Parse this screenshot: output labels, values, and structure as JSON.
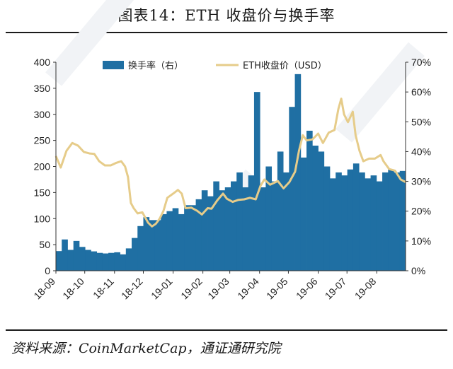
{
  "header": {
    "title": "图表14：ETH 收盘价与换手率"
  },
  "footer": {
    "source": "资料来源：CoinMarketCap，通证通研究院"
  },
  "colors": {
    "turnover_bar": "#1f6fa3",
    "price_line": "#e6cc8a",
    "rule": "#1b1b1b"
  },
  "chart_data": {
    "type": "bar+line",
    "title": "图表14：ETH 收盘价与换手率",
    "x_tick_labels": [
      "18-09",
      "18-10",
      "18-11",
      "18-12",
      "19-01",
      "19-02",
      "19-03",
      "19-04",
      "19-05",
      "19-06",
      "19-07",
      "19-08"
    ],
    "x_range": [
      "2018-09-01",
      "2019-08-31"
    ],
    "left_axis": {
      "ticks": [
        0,
        50,
        100,
        150,
        200,
        250,
        300,
        350,
        400
      ],
      "ylim": [
        0,
        400
      ]
    },
    "right_axis": {
      "ticks": [
        "0%",
        "10%",
        "20%",
        "30%",
        "40%",
        "50%",
        "60%",
        "70%"
      ],
      "ylim": [
        0,
        0.7
      ]
    },
    "legend_position": "top",
    "series": [
      {
        "name": "换手率（右）",
        "type": "bar",
        "axis": "right",
        "date_start": "2018-09-01",
        "date_end": "2019-08-31",
        "step": "7 days",
        "values": [
          0.066,
          0.105,
          0.07,
          0.1,
          0.08,
          0.07,
          0.065,
          0.06,
          0.058,
          0.06,
          0.062,
          0.055,
          0.075,
          0.11,
          0.15,
          0.18,
          0.17,
          0.17,
          0.19,
          0.2,
          0.21,
          0.19,
          0.22,
          0.22,
          0.24,
          0.27,
          0.25,
          0.3,
          0.27,
          0.28,
          0.3,
          0.33,
          0.28,
          0.32,
          0.6,
          0.28,
          0.35,
          0.3,
          0.4,
          0.33,
          0.55,
          0.66,
          0.38,
          0.47,
          0.42,
          0.4,
          0.35,
          0.31,
          0.33,
          0.32,
          0.34,
          0.36,
          0.33,
          0.31,
          0.32,
          0.3,
          0.33,
          0.34,
          0.33,
          0.335
        ]
      },
      {
        "name": "ETH收盘价（USD）",
        "type": "line",
        "axis": "left",
        "x": [
          "2018-09-01",
          "2018-09-06",
          "2018-09-12",
          "2018-09-18",
          "2018-09-24",
          "2018-09-30",
          "2018-10-06",
          "2018-10-11",
          "2018-10-16",
          "2018-10-22",
          "2018-10-28",
          "2018-11-03",
          "2018-11-08",
          "2018-11-12",
          "2018-11-15",
          "2018-11-18",
          "2018-11-21",
          "2018-11-25",
          "2018-11-30",
          "2018-12-06",
          "2018-12-10",
          "2018-12-14",
          "2018-12-18",
          "2018-12-22",
          "2018-12-26",
          "2019-01-01",
          "2019-01-06",
          "2019-01-10",
          "2019-01-14",
          "2019-01-20",
          "2019-01-26",
          "2019-01-31",
          "2019-02-06",
          "2019-02-10",
          "2019-02-16",
          "2019-02-22",
          "2019-02-26",
          "2019-03-04",
          "2019-03-10",
          "2019-03-16",
          "2019-03-22",
          "2019-03-28",
          "2019-04-02",
          "2019-04-06",
          "2019-04-12",
          "2019-04-20",
          "2019-04-26",
          "2019-05-02",
          "2019-05-08",
          "2019-05-12",
          "2019-05-14",
          "2019-05-16",
          "2019-05-20",
          "2019-05-26",
          "2019-06-01",
          "2019-06-06",
          "2019-06-12",
          "2019-06-18",
          "2019-06-22",
          "2019-06-25",
          "2019-06-28",
          "2019-07-02",
          "2019-07-07",
          "2019-07-10",
          "2019-07-14",
          "2019-07-18",
          "2019-07-24",
          "2019-07-30",
          "2019-08-05",
          "2019-08-08",
          "2019-08-14",
          "2019-08-20",
          "2019-08-26",
          "2019-08-31"
        ],
        "y": [
          220,
          198,
          230,
          245,
          240,
          228,
          225,
          224,
          210,
          202,
          202,
          207,
          210,
          200,
          180,
          130,
          120,
          110,
          112,
          92,
          85,
          90,
          100,
          115,
          140,
          148,
          155,
          148,
          120,
          121,
          115,
          108,
          120,
          119,
          135,
          148,
          138,
          132,
          136,
          137,
          140,
          137,
          163,
          175,
          165,
          172,
          158,
          170,
          190,
          230,
          245,
          260,
          250,
          252,
          263,
          245,
          265,
          270,
          310,
          330,
          300,
          285,
          305,
          260,
          230,
          210,
          215,
          215,
          222,
          210,
          195,
          192,
          175,
          170
        ]
      }
    ]
  }
}
